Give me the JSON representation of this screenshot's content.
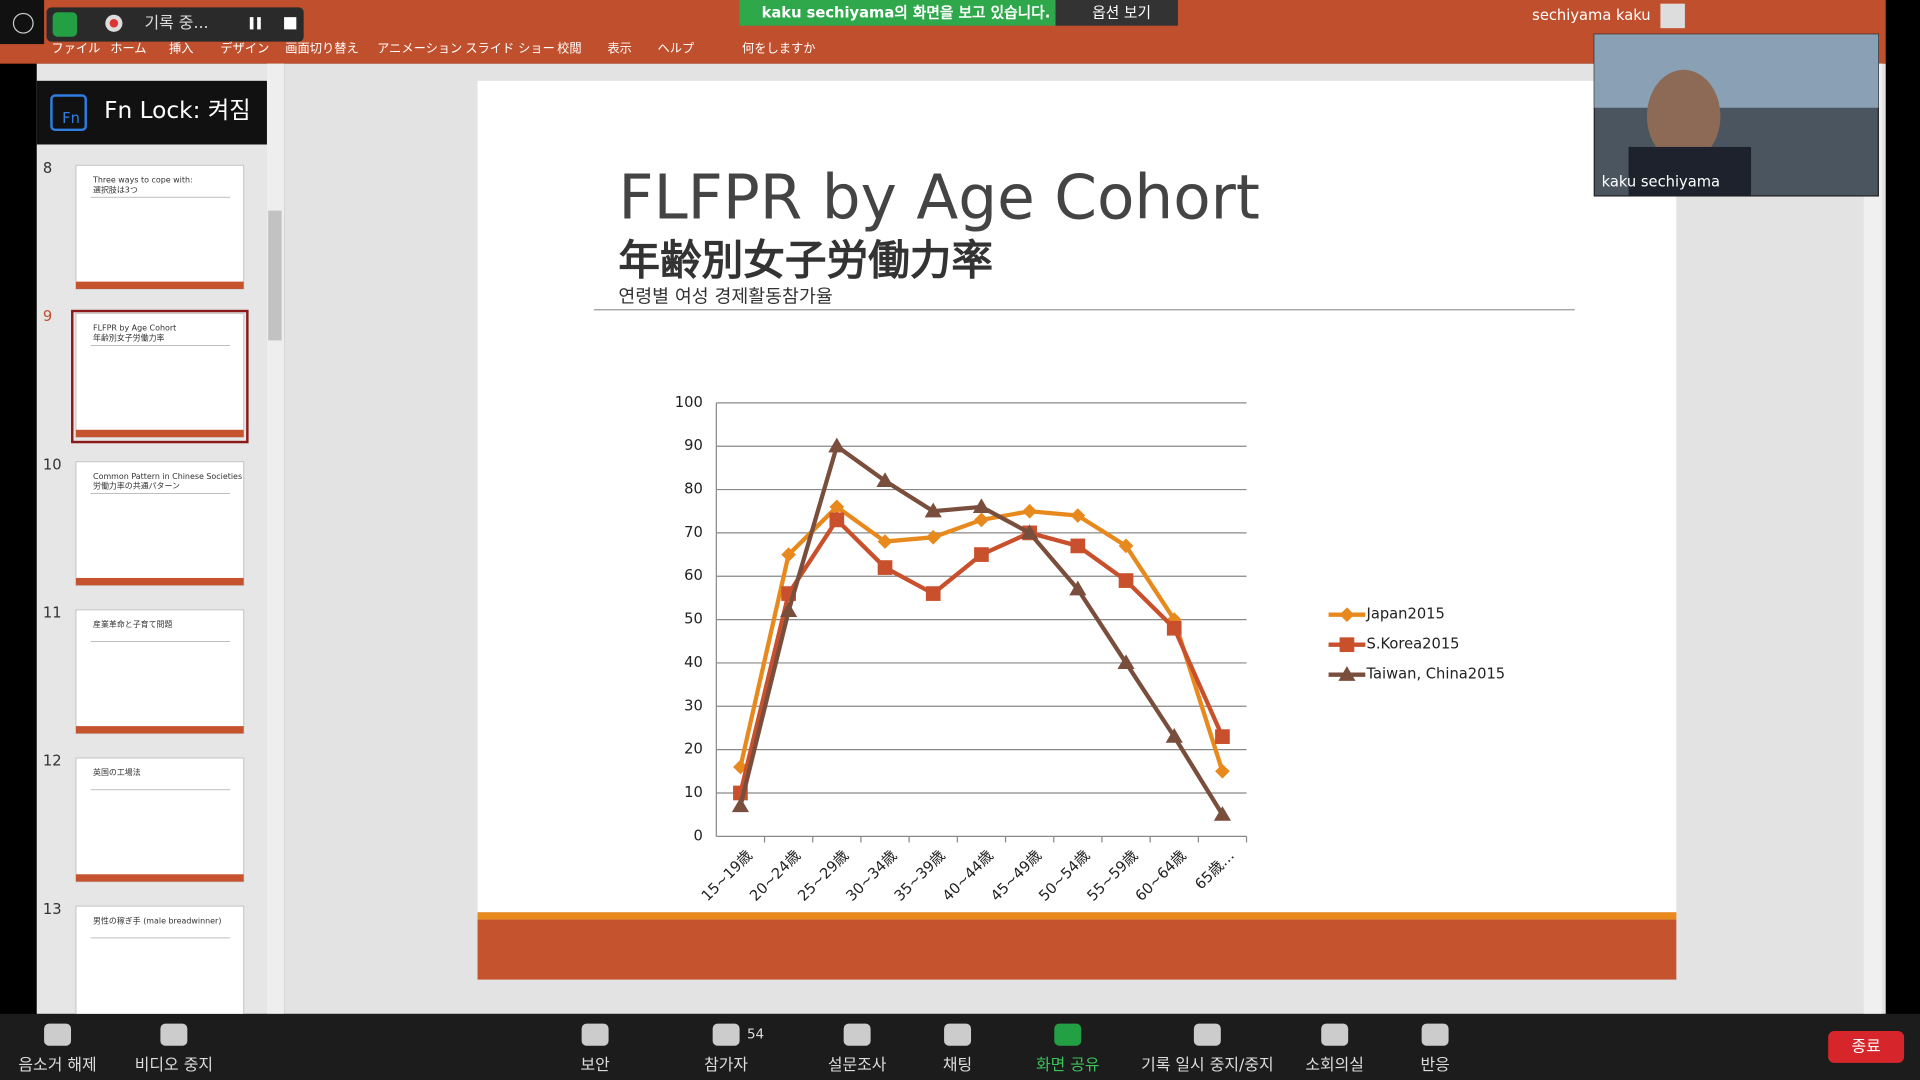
{
  "window": {
    "recording": "기록 중...",
    "share_banner": "kaku  sechiyama의 화면을 보고 있습니다.",
    "options": "옵션 보기",
    "user": "sechiyama kaku",
    "webcam_name": "kaku sechiyama"
  },
  "ribbon": [
    "ファイル",
    "ホーム",
    "挿入",
    "デザイン",
    "画面切り替え",
    "アニメーション",
    "スライド ショー",
    "校閲",
    "表示",
    "ヘルプ",
    "何をしますか"
  ],
  "fn_lock": {
    "icon": "Fn",
    "text": "Fn Lock: 켜짐"
  },
  "thumbnails": [
    {
      "number": "8",
      "title": "Three ways to cope with:",
      "subtitle": "選択肢は3つ"
    },
    {
      "number": "9",
      "title": "FLFPR by Age Cohort",
      "subtitle": "年齢別女子労働力率"
    },
    {
      "number": "10",
      "title": "Common Pattern in Chinese Societies",
      "subtitle": "労働力率の共通パターン"
    },
    {
      "number": "11",
      "title": "産業革命と子育て問題"
    },
    {
      "number": "12",
      "title": "英国の工場法"
    },
    {
      "number": "13",
      "title": "男性の稼ぎ手 (male breadwinner)"
    }
  ],
  "slide": {
    "title": "FLFPR by Age Cohort",
    "subtitle": "年齢別女子労働力率",
    "subtitle_ko": "연령별 여성 경제활동참가율"
  },
  "chart_data": {
    "type": "line",
    "categories": [
      "15~19歳",
      "20~24歳",
      "25~29歳",
      "30~34歳",
      "35~39歳",
      "40~44歳",
      "45~49歳",
      "50~54歳",
      "55~59歳",
      "60~64歳",
      "65歳…"
    ],
    "series": [
      {
        "name": "Japan2015",
        "color": "#e8891e",
        "marker": "diamond",
        "values": [
          16,
          65,
          76,
          68,
          69,
          73,
          75,
          74,
          67,
          50,
          15
        ]
      },
      {
        "name": "S.Korea2015",
        "color": "#c8502c",
        "marker": "square",
        "values": [
          10,
          56,
          73,
          62,
          56,
          65,
          70,
          67,
          59,
          48,
          23
        ]
      },
      {
        "name": "Taiwan, China2015",
        "color": "#7a4e3c",
        "marker": "triangle",
        "values": [
          7,
          52,
          90,
          82,
          75,
          76,
          70,
          57,
          40,
          23,
          5
        ]
      }
    ],
    "ylim": [
      0,
      100
    ],
    "yticks": [
      0,
      10,
      20,
      30,
      40,
      50,
      60,
      70,
      80,
      90,
      100
    ],
    "grid": true,
    "legend": "right"
  },
  "toolbar": [
    {
      "label": "음소거 해제"
    },
    {
      "label": "비디오 중지"
    },
    {
      "label": "보안"
    },
    {
      "label": "참가자",
      "count": 54
    },
    {
      "label": "설문조사"
    },
    {
      "label": "채팅"
    },
    {
      "label": "화면 공유"
    },
    {
      "label": "기록 일시 중지/중지"
    },
    {
      "label": "소회의실"
    },
    {
      "label": "반응"
    }
  ],
  "end_button": "종료"
}
